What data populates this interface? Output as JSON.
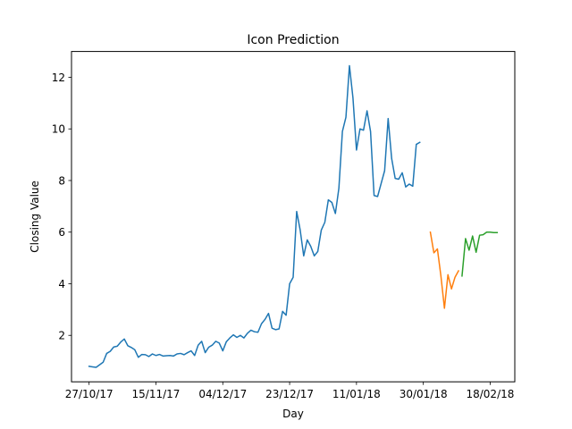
{
  "chart_data": {
    "type": "line",
    "title": "Icon Prediction",
    "xlabel": "Day",
    "ylabel": "Closing Value",
    "xlim": [
      "2017-10-22",
      "2018-02-25"
    ],
    "ylim": [
      0.2,
      13.0
    ],
    "x_ticks": [
      {
        "date": "2017-10-27",
        "label": "27/10/17"
      },
      {
        "date": "2017-11-15",
        "label": "15/11/17"
      },
      {
        "date": "2017-12-04",
        "label": "04/12/17"
      },
      {
        "date": "2017-12-23",
        "label": "23/12/17"
      },
      {
        "date": "2018-01-11",
        "label": "11/01/18"
      },
      {
        "date": "2018-01-30",
        "label": "30/01/18"
      },
      {
        "date": "2018-02-18",
        "label": "18/02/18"
      }
    ],
    "y_ticks": [
      2,
      4,
      6,
      8,
      10,
      12
    ],
    "series": [
      {
        "color": "#1f77b4",
        "points": [
          [
            "2017-10-27",
            0.8
          ],
          [
            "2017-10-28",
            0.78
          ],
          [
            "2017-10-29",
            0.76
          ],
          [
            "2017-10-30",
            0.86
          ],
          [
            "2017-10-31",
            0.96
          ],
          [
            "2017-11-01",
            1.3
          ],
          [
            "2017-11-02",
            1.38
          ],
          [
            "2017-11-03",
            1.55
          ],
          [
            "2017-11-04",
            1.58
          ],
          [
            "2017-11-05",
            1.74
          ],
          [
            "2017-11-06",
            1.86
          ],
          [
            "2017-11-07",
            1.6
          ],
          [
            "2017-11-08",
            1.53
          ],
          [
            "2017-11-09",
            1.44
          ],
          [
            "2017-11-10",
            1.15
          ],
          [
            "2017-11-11",
            1.26
          ],
          [
            "2017-11-12",
            1.25
          ],
          [
            "2017-11-13",
            1.18
          ],
          [
            "2017-11-14",
            1.28
          ],
          [
            "2017-11-15",
            1.22
          ],
          [
            "2017-11-16",
            1.26
          ],
          [
            "2017-11-17",
            1.2
          ],
          [
            "2017-11-18",
            1.21
          ],
          [
            "2017-11-19",
            1.22
          ],
          [
            "2017-11-20",
            1.2
          ],
          [
            "2017-11-21",
            1.28
          ],
          [
            "2017-11-22",
            1.3
          ],
          [
            "2017-11-23",
            1.25
          ],
          [
            "2017-11-24",
            1.33
          ],
          [
            "2017-11-25",
            1.4
          ],
          [
            "2017-11-26",
            1.22
          ],
          [
            "2017-11-27",
            1.62
          ],
          [
            "2017-11-28",
            1.77
          ],
          [
            "2017-11-29",
            1.33
          ],
          [
            "2017-11-30",
            1.54
          ],
          [
            "2017-12-01",
            1.62
          ],
          [
            "2017-12-02",
            1.77
          ],
          [
            "2017-12-03",
            1.7
          ],
          [
            "2017-12-04",
            1.4
          ],
          [
            "2017-12-05",
            1.75
          ],
          [
            "2017-12-06",
            1.9
          ],
          [
            "2017-12-07",
            2.02
          ],
          [
            "2017-12-08",
            1.92
          ],
          [
            "2017-12-09",
            2.0
          ],
          [
            "2017-12-10",
            1.9
          ],
          [
            "2017-12-11",
            2.08
          ],
          [
            "2017-12-12",
            2.2
          ],
          [
            "2017-12-13",
            2.14
          ],
          [
            "2017-12-14",
            2.12
          ],
          [
            "2017-12-15",
            2.45
          ],
          [
            "2017-12-16",
            2.62
          ],
          [
            "2017-12-17",
            2.85
          ],
          [
            "2017-12-18",
            2.28
          ],
          [
            "2017-12-19",
            2.22
          ],
          [
            "2017-12-20",
            2.25
          ],
          [
            "2017-12-21",
            2.93
          ],
          [
            "2017-12-22",
            2.78
          ],
          [
            "2017-12-23",
            4.0
          ],
          [
            "2017-12-24",
            4.25
          ],
          [
            "2017-12-25",
            6.8
          ],
          [
            "2017-12-26",
            6.08
          ],
          [
            "2017-12-27",
            5.08
          ],
          [
            "2017-12-28",
            5.7
          ],
          [
            "2017-12-29",
            5.45
          ],
          [
            "2017-12-30",
            5.08
          ],
          [
            "2017-12-31",
            5.25
          ],
          [
            "2018-01-01",
            6.08
          ],
          [
            "2018-01-02",
            6.38
          ],
          [
            "2018-01-03",
            7.25
          ],
          [
            "2018-01-04",
            7.15
          ],
          [
            "2018-01-05",
            6.72
          ],
          [
            "2018-01-06",
            7.7
          ],
          [
            "2018-01-07",
            9.9
          ],
          [
            "2018-01-08",
            10.45
          ],
          [
            "2018-01-09",
            12.45
          ],
          [
            "2018-01-10",
            11.2
          ],
          [
            "2018-01-11",
            9.18
          ],
          [
            "2018-01-12",
            10.0
          ],
          [
            "2018-01-13",
            9.95
          ],
          [
            "2018-01-14",
            10.7
          ],
          [
            "2018-01-15",
            9.9
          ],
          [
            "2018-01-16",
            7.42
          ],
          [
            "2018-01-17",
            7.38
          ],
          [
            "2018-01-18",
            7.88
          ],
          [
            "2018-01-19",
            8.38
          ],
          [
            "2018-01-20",
            10.4
          ],
          [
            "2018-01-21",
            8.85
          ],
          [
            "2018-01-22",
            8.08
          ],
          [
            "2018-01-23",
            8.05
          ],
          [
            "2018-01-24",
            8.3
          ],
          [
            "2018-01-25",
            7.75
          ],
          [
            "2018-01-26",
            7.86
          ],
          [
            "2018-01-27",
            7.78
          ],
          [
            "2018-01-28",
            9.4
          ],
          [
            "2018-01-29",
            9.48
          ]
        ]
      },
      {
        "color": "#ff7f0e",
        "points": [
          [
            "2018-02-01",
            6.0
          ],
          [
            "2018-02-02",
            5.2
          ],
          [
            "2018-02-03",
            5.35
          ],
          [
            "2018-02-04",
            4.3
          ],
          [
            "2018-02-05",
            3.05
          ],
          [
            "2018-02-06",
            4.35
          ],
          [
            "2018-02-07",
            3.8
          ],
          [
            "2018-02-08",
            4.25
          ],
          [
            "2018-02-09",
            4.5
          ]
        ]
      },
      {
        "color": "#2ca02c",
        "points": [
          [
            "2018-02-10",
            4.3
          ],
          [
            "2018-02-11",
            5.75
          ],
          [
            "2018-02-12",
            5.3
          ],
          [
            "2018-02-13",
            5.85
          ],
          [
            "2018-02-14",
            5.22
          ],
          [
            "2018-02-15",
            5.88
          ],
          [
            "2018-02-16",
            5.9
          ],
          [
            "2018-02-17",
            6.0
          ],
          [
            "2018-02-18",
            6.0
          ],
          [
            "2018-02-19",
            5.98
          ],
          [
            "2018-02-20",
            5.98
          ]
        ]
      }
    ]
  }
}
